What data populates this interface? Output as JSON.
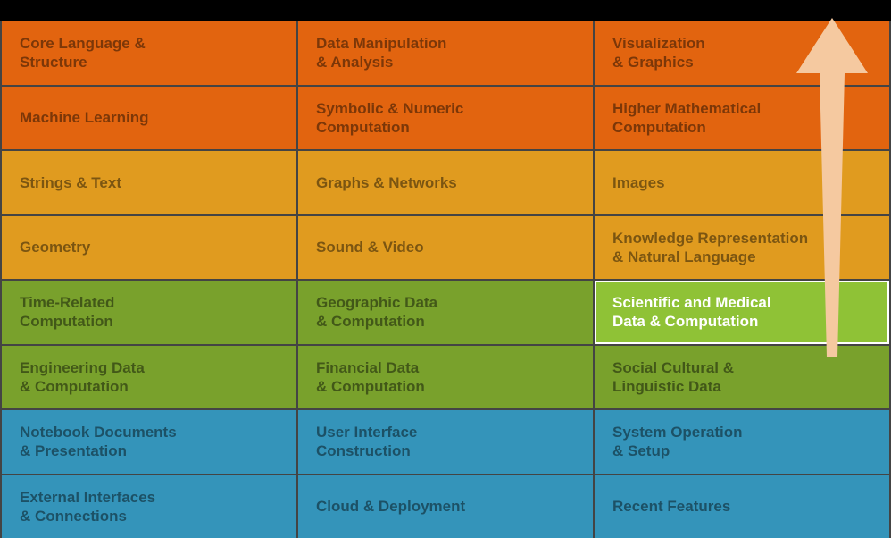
{
  "colors": {
    "muted_text": "rgba(0,0,0,0.45)",
    "highlight_text": "#ffffff",
    "arrow_fill": "#f5c9a0"
  },
  "rows": [
    {
      "bg": "#e2640f",
      "cells": [
        {
          "label": "Core Language &\nStructure"
        },
        {
          "label": "Data Manipulation\n& Analysis"
        },
        {
          "label": "Visualization\n& Graphics"
        }
      ]
    },
    {
      "bg": "#e2640f",
      "cells": [
        {
          "label": "Machine Learning"
        },
        {
          "label": "Symbolic & Numeric\nComputation"
        },
        {
          "label": "Higher Mathematical\nComputation"
        }
      ]
    },
    {
      "bg": "#e09b1f",
      "cells": [
        {
          "label": "Strings & Text"
        },
        {
          "label": "Graphs & Networks"
        },
        {
          "label": "Images"
        }
      ]
    },
    {
      "bg": "#e09b1f",
      "cells": [
        {
          "label": "Geometry"
        },
        {
          "label": "Sound & Video"
        },
        {
          "label": "Knowledge Representation\n& Natural Language"
        }
      ]
    },
    {
      "bg": "#79a12c",
      "cells": [
        {
          "label": "Time-Related\nComputation"
        },
        {
          "label": "Geographic Data\n& Computation"
        },
        {
          "label": "Scientific and Medical\nData & Computation",
          "highlight": true,
          "bg": "#8fc236"
        }
      ]
    },
    {
      "bg": "#79a12c",
      "cells": [
        {
          "label": "Engineering Data\n& Computation"
        },
        {
          "label": "Financial Data\n& Computation"
        },
        {
          "label": "Social Cultural &\nLinguistic Data"
        }
      ]
    },
    {
      "bg": "#3494ba",
      "cells": [
        {
          "label": "Notebook Documents\n& Presentation"
        },
        {
          "label": "User Interface\nConstruction"
        },
        {
          "label": "System Operation\n& Setup"
        }
      ]
    },
    {
      "bg": "#3494ba",
      "cells": [
        {
          "label": "External Interfaces\n& Connections"
        },
        {
          "label": "Cloud & Deployment"
        },
        {
          "label": "Recent Features"
        }
      ]
    }
  ]
}
